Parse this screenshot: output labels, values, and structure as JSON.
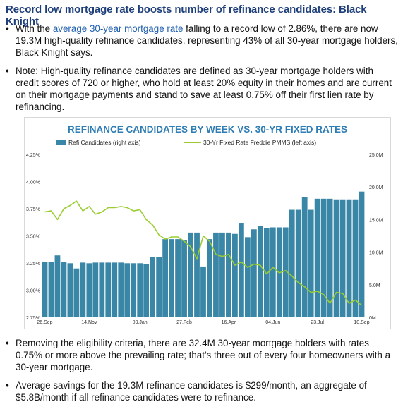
{
  "title": "Record low mortgage rate boosts number of refinance candidates: Black Knight",
  "bullets": {
    "b1_link": "average 30-year mortgage rate",
    "b1_pre": "With the ",
    "b1_post": " falling to a record low of 2.86%, there are now 19.3M high-quality refinance candidates, representing 43% of all 30-year mortgage holders, Black Knight says.",
    "b2": "Note: High-quality refinance candidates are defined as 30-year mortgage holders with credit scores of 720 or higher, who hold at least 20% equity in their homes and are current on their mortgage payments and stand to save at least 0.75% off their first lien rate by refinancing.",
    "b3": "Removing the eligibility criteria, there are 32.4M 30-year mortgage holders with rates 0.75% or more above the prevailing rate; that's three out of every four homeowners with a 30-year mortgage.",
    "b4": "Average savings for the 19.3M refinance candidates is $299/month, an aggregate of $5.8B/month if all refinance candidates were to refinance."
  },
  "colors": {
    "bar": "#3a86a6",
    "line": "#9acd32",
    "title": "#1f3f7a",
    "chart_title": "#2e7db5"
  },
  "chart_data": {
    "type": "bar+line",
    "title": "REFINANCE CANDIDATES BY WEEK VS. 30-YR FIXED RATES",
    "legend": [
      "Refi Candidates (right axis)",
      "30-Yr Fixed Rate Freddie PMMS (left axis)"
    ],
    "legend_position": "top",
    "x_tick_labels": [
      "26.Sep",
      "14.Nov",
      "09.Jan",
      "27.Feb",
      "16.Apr",
      "04.Jun",
      "23.Jul",
      "10.Sep"
    ],
    "x_tick_index": [
      0,
      7,
      15,
      22,
      29,
      36,
      43,
      50
    ],
    "left_axis": {
      "ticks": [
        "2.75%",
        "3.00%",
        "3.25%",
        "3.50%",
        "3.75%",
        "4.00%",
        "4.25%"
      ],
      "range": [
        2.75,
        4.25
      ]
    },
    "right_axis": {
      "ticks": [
        "0M",
        "5.0M",
        "10.0M",
        "15.0M",
        "20.0M",
        "25.0M"
      ],
      "range": [
        0,
        25
      ]
    },
    "refi_candidates_millions": [
      8.5,
      8.5,
      9.5,
      8.5,
      8.3,
      7.5,
      8.4,
      8.3,
      8.4,
      8.4,
      8.4,
      8.4,
      8.4,
      8.3,
      8.3,
      8.3,
      8.2,
      9.3,
      9.3,
      12.0,
      12.0,
      12.0,
      11.8,
      13.0,
      13.0,
      7.8,
      12.0,
      13.0,
      13.0,
      13.0,
      12.8,
      14.5,
      12.3,
      13.5,
      14.0,
      13.7,
      13.8,
      13.8,
      13.8,
      16.5,
      16.5,
      18.5,
      16.5,
      18.2,
      18.2,
      18.2,
      18.1,
      18.1,
      18.1,
      18.1,
      19.3
    ],
    "rate_percent": [
      3.72,
      3.73,
      3.65,
      3.75,
      3.78,
      3.82,
      3.73,
      3.77,
      3.7,
      3.72,
      3.76,
      3.76,
      3.77,
      3.76,
      3.73,
      3.74,
      3.65,
      3.6,
      3.51,
      3.47,
      3.49,
      3.49,
      3.45,
      3.4,
      3.29,
      3.5,
      3.45,
      3.33,
      3.31,
      3.33,
      3.23,
      3.26,
      3.21,
      3.24,
      3.23,
      3.15,
      3.21,
      3.16,
      3.18,
      3.13,
      3.07,
      3.03,
      2.98,
      2.99,
      2.96,
      2.88,
      2.98,
      2.97,
      2.88,
      2.91,
      2.86
    ]
  }
}
